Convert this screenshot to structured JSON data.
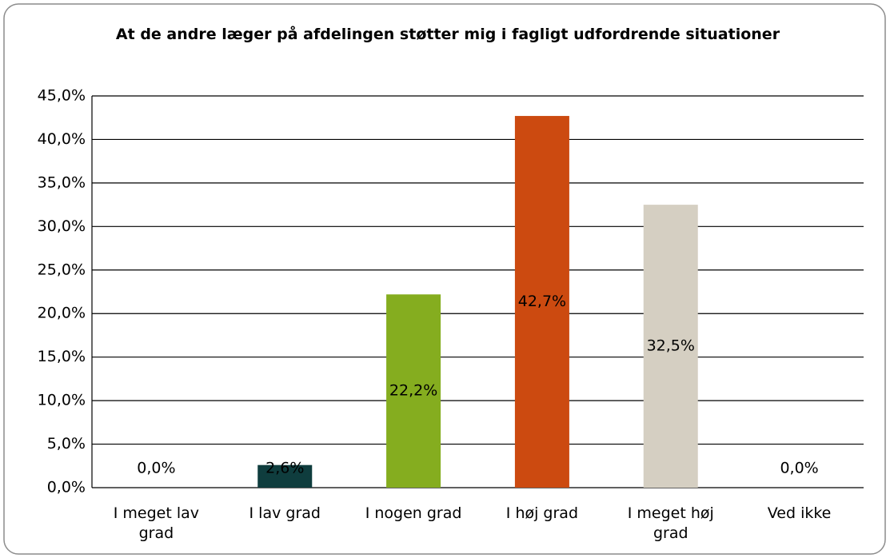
{
  "chart_data": {
    "type": "bar",
    "title": "At de andre læger på afdelingen støtter mig i fagligt udfordrende situationer",
    "categories": [
      "I meget lav grad",
      "I lav grad",
      "I nogen grad",
      "I høj grad",
      "I meget høj grad",
      "Ved ikke"
    ],
    "values": [
      0,
      2.6,
      22.2,
      42.7,
      32.5,
      0
    ],
    "value_labels": [
      "0,0%",
      "2,6%",
      "22,2%",
      "42,7%",
      "32,5%",
      "0,0%"
    ],
    "colors": [
      "#0f3d3e",
      "#0f3d3e",
      "#85ad1f",
      "#cc4a10",
      "#d5cfc2",
      "#d5cfc2"
    ],
    "ylim": [
      0,
      45
    ],
    "yticks": [
      {
        "value": 0,
        "label": "0,0%"
      },
      {
        "value": 5,
        "label": "5,0%"
      },
      {
        "value": 10,
        "label": "10,0%"
      },
      {
        "value": 15,
        "label": "15,0%"
      },
      {
        "value": 20,
        "label": "20,0%"
      },
      {
        "value": 25,
        "label": "25,0%"
      },
      {
        "value": 30,
        "label": "30,0%"
      },
      {
        "value": 35,
        "label": "35,0%"
      },
      {
        "value": 40,
        "label": "40,0%"
      },
      {
        "value": 45,
        "label": "45,0%"
      }
    ],
    "grid": true
  }
}
